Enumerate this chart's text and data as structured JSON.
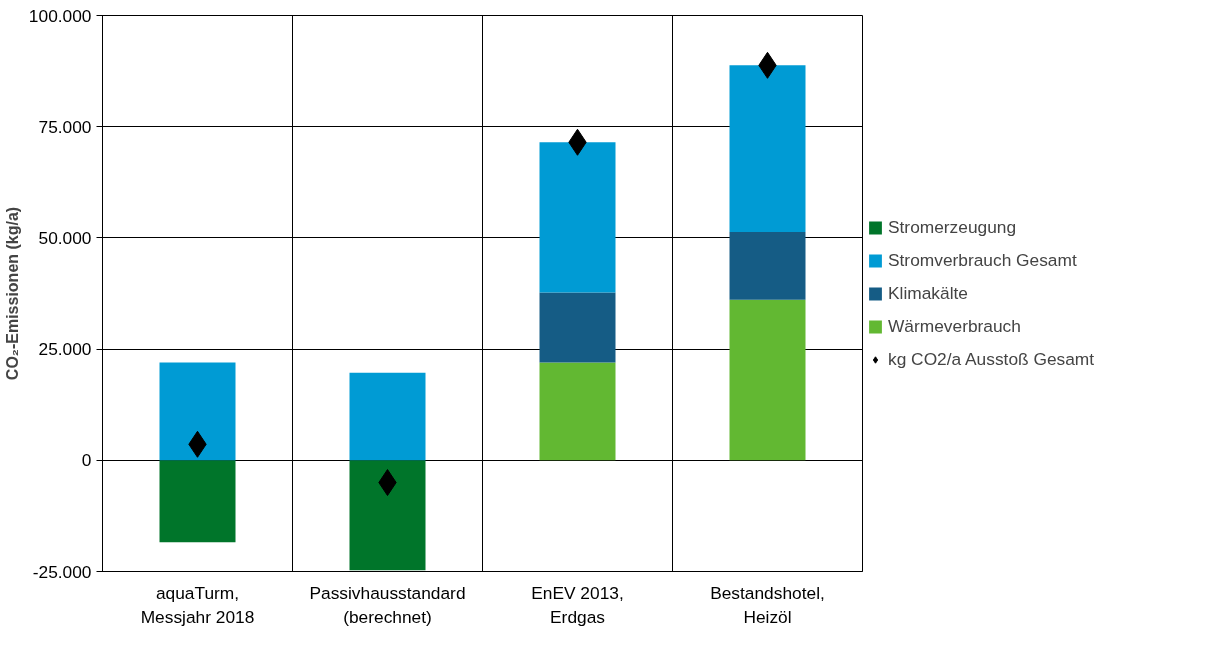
{
  "chart_data": {
    "type": "bar",
    "stacked": true,
    "ylabel": "CO₂-Emissionen (kg/a)",
    "categories": [
      "aquaTurm,\nMessjahr 2018",
      "Passivhausstandard\n(berechnet)",
      "EnEV 2013,\nErdgas",
      "Bestandshotel,\nHeizöl"
    ],
    "series": [
      {
        "name": "Stromerzeugung",
        "color": "#00752a",
        "values": [
          -18400,
          -24700,
          0,
          0
        ]
      },
      {
        "name": "Wärmeverbrauch",
        "color": "#62b832",
        "values": [
          0,
          0,
          22000,
          36100
        ]
      },
      {
        "name": "Klimakälte",
        "color": "#155c85",
        "values": [
          0,
          0,
          15700,
          15200
        ]
      },
      {
        "name": "Stromverbrauch Gesamt",
        "color": "#009bd4",
        "values": [
          22000,
          19700,
          33800,
          37500
        ]
      },
      {
        "name": "kg CO2/a Ausstoß Gesamt",
        "type": "scatter",
        "marker": "diamond",
        "color": "#000000",
        "values": [
          3600,
          -5000,
          71500,
          88800
        ]
      }
    ],
    "ylim": [
      -25000,
      100000
    ],
    "yticks": [
      {
        "value": -25000,
        "label": "-25.000"
      },
      0,
      {
        "value": 25000,
        "label": "25.000"
      },
      {
        "value": 50000,
        "label": "50.000"
      },
      {
        "value": 75000,
        "label": "75.000"
      },
      {
        "value": 100000,
        "label": "100.000"
      }
    ],
    "grid": true,
    "legend": "right"
  }
}
